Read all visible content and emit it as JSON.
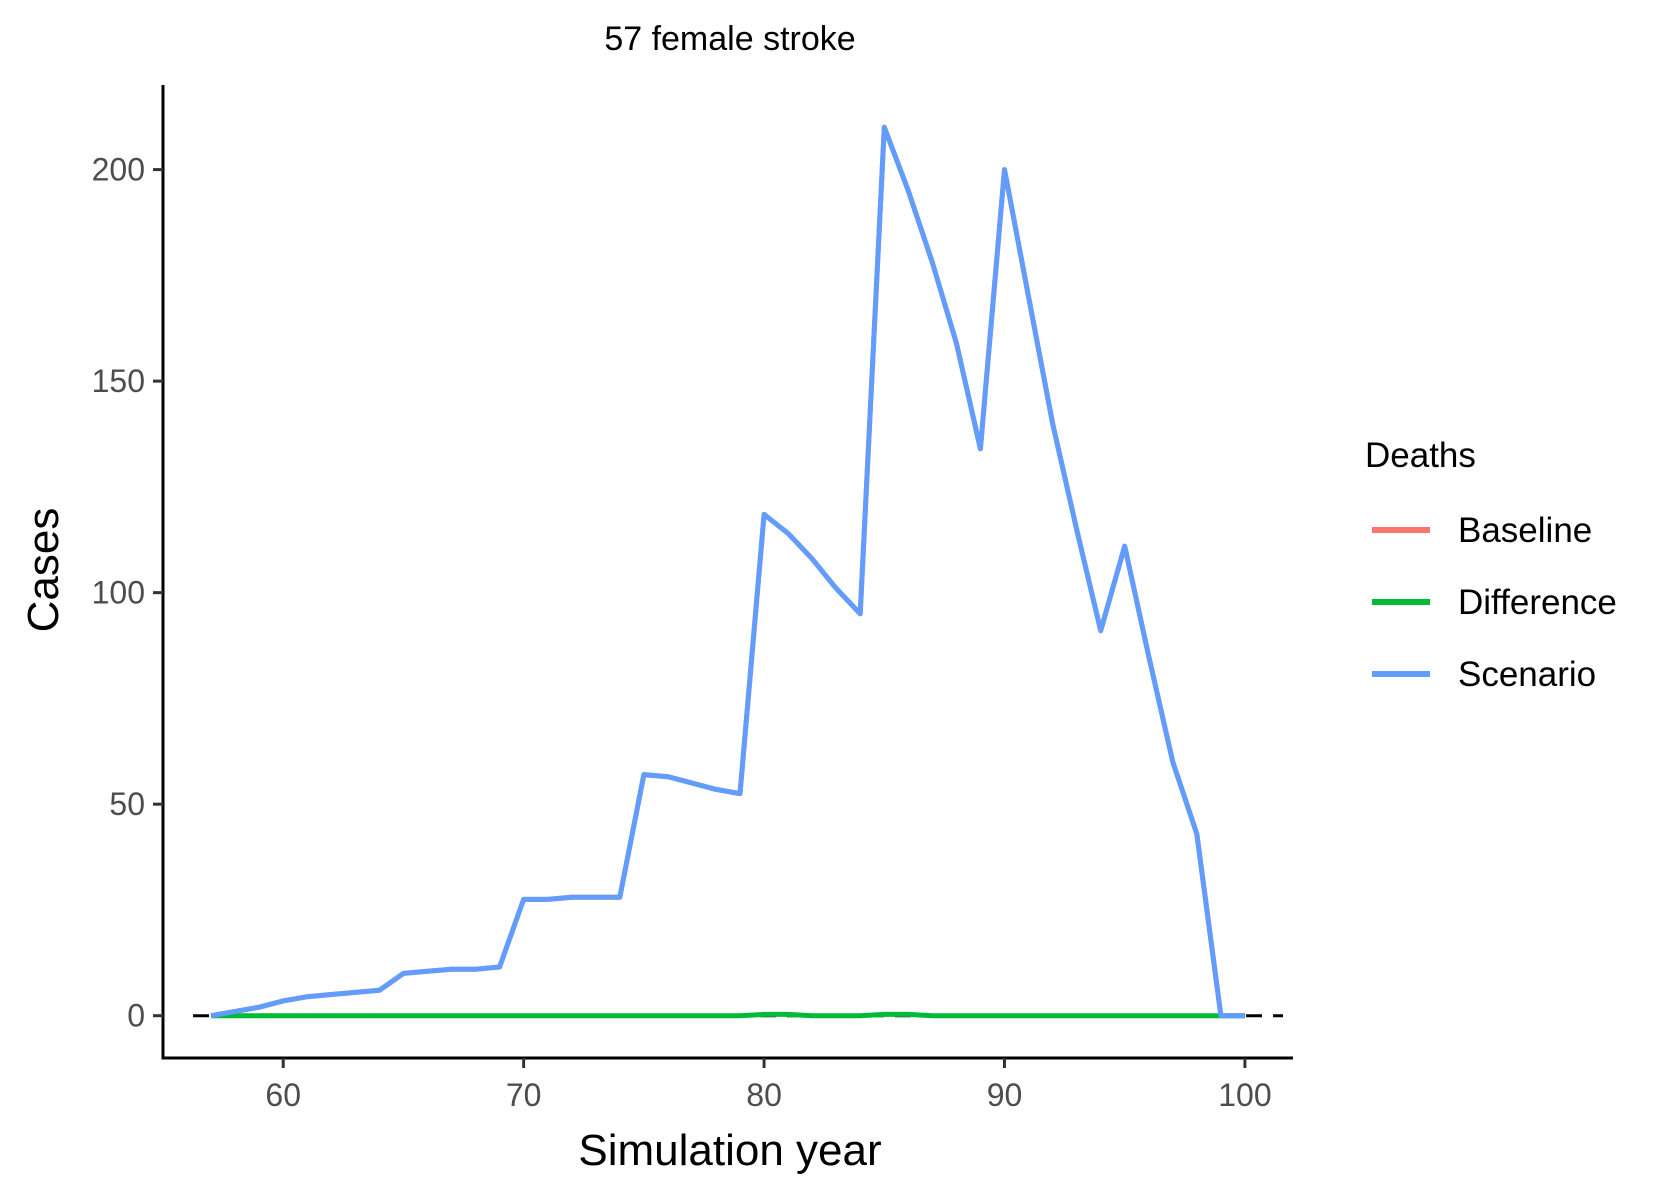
{
  "chart_data": {
    "type": "line",
    "title": "57 female stroke",
    "xlabel": "Simulation year",
    "ylabel": "Cases",
    "xlim": [
      55,
      102
    ],
    "ylim": [
      -10,
      220
    ],
    "x_ticks": [
      60,
      70,
      80,
      90,
      100
    ],
    "y_ticks": [
      0,
      50,
      100,
      150,
      200
    ],
    "grid": false,
    "reference_line": {
      "y": 0,
      "style": "dashed",
      "color": "#000000"
    },
    "legend": {
      "title": "Deaths",
      "placement": "right",
      "entries": [
        {
          "name": "Baseline",
          "color": "#F8766D"
        },
        {
          "name": "Difference",
          "color": "#00BA38"
        },
        {
          "name": "Scenario",
          "color": "#619CFF"
        }
      ]
    },
    "x": [
      57,
      58,
      59,
      60,
      61,
      62,
      63,
      64,
      65,
      66,
      67,
      68,
      69,
      70,
      71,
      72,
      73,
      74,
      75,
      76,
      77,
      78,
      79,
      80,
      81,
      82,
      83,
      84,
      85,
      86,
      87,
      88,
      89,
      90,
      91,
      92,
      93,
      94,
      95,
      96,
      97,
      98,
      99,
      100
    ],
    "series": [
      {
        "name": "Baseline",
        "color": "#F8766D",
        "values": [
          0,
          1,
          2,
          3.5,
          4.5,
          5,
          5.5,
          6,
          10,
          10.5,
          11,
          11,
          11.5,
          27.5,
          27.5,
          28,
          28,
          28,
          57,
          56.5,
          55,
          53.5,
          52.5,
          118.5,
          114,
          108,
          101,
          95,
          210,
          195,
          178,
          159,
          134,
          200,
          170,
          140,
          115,
          91,
          111,
          85,
          60,
          43,
          0,
          0
        ]
      },
      {
        "name": "Difference",
        "color": "#00BA38",
        "values": [
          0,
          0,
          0,
          0,
          0,
          0,
          0,
          0,
          0,
          0,
          0,
          0,
          0,
          0,
          0,
          0,
          0,
          0,
          0,
          0,
          0,
          0,
          0,
          0.3,
          0.3,
          0,
          0,
          0,
          0.3,
          0.3,
          0,
          0,
          0,
          0,
          0,
          0,
          0,
          0,
          0,
          0,
          0,
          0,
          0,
          0
        ]
      },
      {
        "name": "Scenario",
        "color": "#619CFF",
        "values": [
          0,
          1,
          2,
          3.5,
          4.5,
          5,
          5.5,
          6,
          10,
          10.5,
          11,
          11,
          11.5,
          27.5,
          27.5,
          28,
          28,
          28,
          57,
          56.5,
          55,
          53.5,
          52.5,
          118.5,
          114,
          108,
          101,
          95,
          210,
          195,
          178,
          159,
          134,
          200,
          170,
          140,
          115,
          91,
          111,
          85,
          60,
          43,
          0,
          0
        ]
      }
    ]
  }
}
